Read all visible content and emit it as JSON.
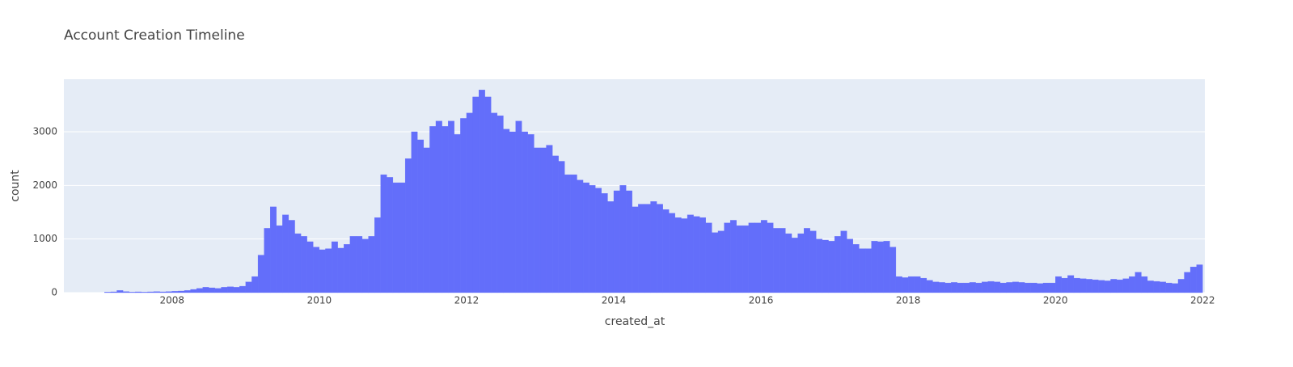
{
  "chart_data": {
    "type": "histogram",
    "title": "Account Creation Timeline",
    "x_label": "created_at",
    "y_label": "count",
    "color": "#636efa",
    "background": "#e5ecf6",
    "grid": true,
    "xlim": [
      2006.53,
      2022.03
    ],
    "xticks": [
      2008,
      2010,
      2012,
      2014,
      2016,
      2018,
      2020,
      2022
    ],
    "ylim": [
      0,
      3980
    ],
    "yticks": [
      0,
      1000,
      2000,
      3000
    ],
    "bins": [
      2007,
      2007.083,
      2007.167,
      2007.25,
      2007.333,
      2007.417,
      2007.5,
      2007.583,
      2007.667,
      2007.75,
      2007.833,
      2007.917,
      2008,
      2008.083,
      2008.167,
      2008.25,
      2008.333,
      2008.417,
      2008.5,
      2008.583,
      2008.667,
      2008.75,
      2008.833,
      2008.917,
      2009,
      2009.083,
      2009.167,
      2009.25,
      2009.333,
      2009.417,
      2009.5,
      2009.583,
      2009.667,
      2009.75,
      2009.833,
      2009.917,
      2010,
      2010.083,
      2010.167,
      2010.25,
      2010.333,
      2010.417,
      2010.5,
      2010.583,
      2010.667,
      2010.75,
      2010.833,
      2010.917,
      2011,
      2011.083,
      2011.167,
      2011.25,
      2011.333,
      2011.417,
      2011.5,
      2011.583,
      2011.667,
      2011.75,
      2011.833,
      2011.917,
      2012,
      2012.083,
      2012.167,
      2012.25,
      2012.333,
      2012.417,
      2012.5,
      2012.583,
      2012.667,
      2012.75,
      2012.833,
      2012.917,
      2013,
      2013.083,
      2013.167,
      2013.25,
      2013.333,
      2013.417,
      2013.5,
      2013.583,
      2013.667,
      2013.75,
      2013.833,
      2013.917,
      2014,
      2014.083,
      2014.167,
      2014.25,
      2014.333,
      2014.417,
      2014.5,
      2014.583,
      2014.667,
      2014.75,
      2014.833,
      2014.917,
      2015,
      2015.083,
      2015.167,
      2015.25,
      2015.333,
      2015.417,
      2015.5,
      2015.583,
      2015.667,
      2015.75,
      2015.833,
      2015.917,
      2016,
      2016.083,
      2016.167,
      2016.25,
      2016.333,
      2016.417,
      2016.5,
      2016.583,
      2016.667,
      2016.75,
      2016.833,
      2016.917,
      2017,
      2017.083,
      2017.167,
      2017.25,
      2017.333,
      2017.417,
      2017.5,
      2017.583,
      2017.667,
      2017.75,
      2017.833,
      2017.917,
      2018,
      2018.083,
      2018.167,
      2018.25,
      2018.333,
      2018.417,
      2018.5,
      2018.583,
      2018.667,
      2018.75,
      2018.833,
      2018.917,
      2019,
      2019.083,
      2019.167,
      2019.25,
      2019.333,
      2019.417,
      2019.5,
      2019.583,
      2019.667,
      2019.75,
      2019.833,
      2019.917,
      2020,
      2020.083,
      2020.167,
      2020.25,
      2020.333,
      2020.417,
      2020.5,
      2020.583,
      2020.667,
      2020.75,
      2020.833,
      2020.917,
      2021,
      2021.083,
      2021.167,
      2021.25,
      2021.333,
      2021.417,
      2021.5,
      2021.583,
      2021.667,
      2021.75,
      2021.833,
      2021.917,
      2022
    ],
    "values": [
      0,
      10,
      15,
      40,
      20,
      10,
      15,
      10,
      15,
      20,
      15,
      20,
      25,
      30,
      40,
      60,
      80,
      100,
      90,
      80,
      100,
      110,
      100,
      120,
      200,
      300,
      700,
      1200,
      1600,
      1250,
      1450,
      1350,
      1100,
      1050,
      950,
      850,
      800,
      820,
      950,
      830,
      900,
      1050,
      1050,
      1000,
      1050,
      1400,
      2200,
      2150,
      2050,
      2050,
      2500,
      3000,
      2850,
      2700,
      3100,
      3200,
      3100,
      3200,
      2950,
      3250,
      3350,
      3650,
      3780,
      3650,
      3350,
      3300,
      3050,
      3000,
      3200,
      3000,
      2950,
      2700,
      2700,
      2750,
      2550,
      2450,
      2200,
      2200,
      2100,
      2050,
      2000,
      1950,
      1850,
      1700,
      1900,
      2000,
      1900,
      1600,
      1650,
      1650,
      1700,
      1650,
      1550,
      1480,
      1400,
      1380,
      1450,
      1420,
      1400,
      1300,
      1120,
      1150,
      1300,
      1350,
      1250,
      1250,
      1300,
      1300,
      1350,
      1300,
      1200,
      1200,
      1100,
      1020,
      1100,
      1200,
      1150,
      1000,
      980,
      960,
      1050,
      1150,
      1000,
      900,
      820,
      820,
      960,
      950,
      960,
      850,
      300,
      280,
      300,
      300,
      270,
      230,
      200,
      190,
      180,
      190,
      180,
      180,
      190,
      180,
      200,
      210,
      200,
      180,
      190,
      200,
      190,
      180,
      180,
      170,
      180,
      180,
      300,
      270,
      320,
      270,
      260,
      250,
      240,
      230,
      220,
      250,
      240,
      260,
      300,
      380,
      300,
      220,
      210,
      200,
      180,
      170,
      250,
      380,
      480,
      520
    ]
  }
}
